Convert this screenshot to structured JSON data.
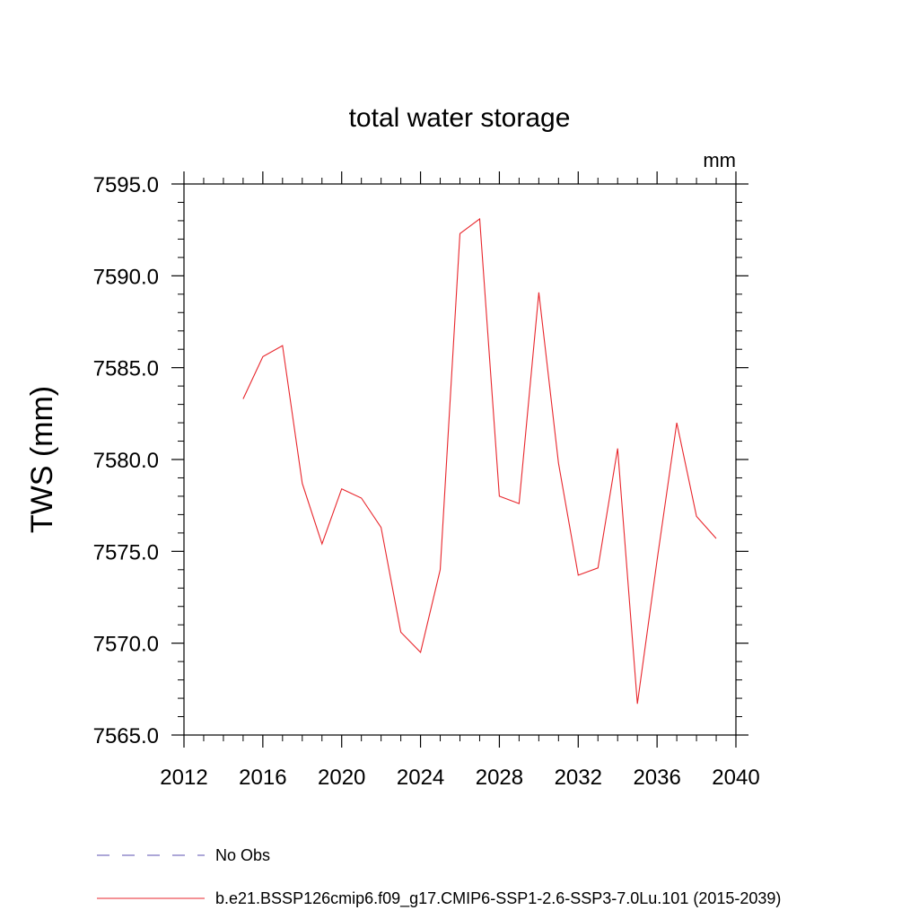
{
  "chart_data": {
    "type": "line",
    "title": "total water storage",
    "units_label": "mm",
    "xlabel": "",
    "ylabel": "TWS  (mm)",
    "xlim": [
      2012,
      2040
    ],
    "ylim": [
      7565.0,
      7595.0
    ],
    "x_ticks": [
      2012,
      2016,
      2020,
      2024,
      2028,
      2032,
      2036,
      2040
    ],
    "x_tick_labels": [
      "2012",
      "2016",
      "2020",
      "2024",
      "2028",
      "2032",
      "2036",
      "2040"
    ],
    "y_ticks": [
      7565,
      7570,
      7575,
      7580,
      7585,
      7590,
      7595
    ],
    "y_tick_labels": [
      "7565.0",
      "7570.0",
      "7575.0",
      "7580.0",
      "7585.0",
      "7590.0",
      "7595.0"
    ],
    "grid": false,
    "legend_position": "bottom",
    "legend": [
      {
        "name": "No Obs",
        "color": "#5b4fb0",
        "style": "dashed"
      },
      {
        "name": "b.e21.BSSP126cmip6.f09_g17.CMIP6-SSP1-2.6-SSP3-7.0Lu.101 (2015-2039)",
        "color": "#e8262c",
        "style": "solid"
      }
    ],
    "series": [
      {
        "name": "b.e21.BSSP126cmip6.f09_g17.CMIP6-SSP1-2.6-SSP3-7.0Lu.101 (2015-2039)",
        "color": "#e8262c",
        "x": [
          2015,
          2016,
          2017,
          2018,
          2019,
          2020,
          2021,
          2022,
          2023,
          2024,
          2025,
          2026,
          2027,
          2028,
          2029,
          2030,
          2031,
          2032,
          2033,
          2034,
          2035,
          2036,
          2037,
          2038,
          2039
        ],
        "y": [
          7583.3,
          7585.6,
          7586.2,
          7578.7,
          7575.4,
          7578.4,
          7577.9,
          7576.3,
          7570.6,
          7569.5,
          7574.0,
          7592.3,
          7593.1,
          7578.0,
          7577.6,
          7589.1,
          7579.8,
          7573.7,
          7574.1,
          7580.6,
          7566.7,
          7574.5,
          7582.0,
          7576.9,
          7575.7
        ]
      }
    ]
  }
}
